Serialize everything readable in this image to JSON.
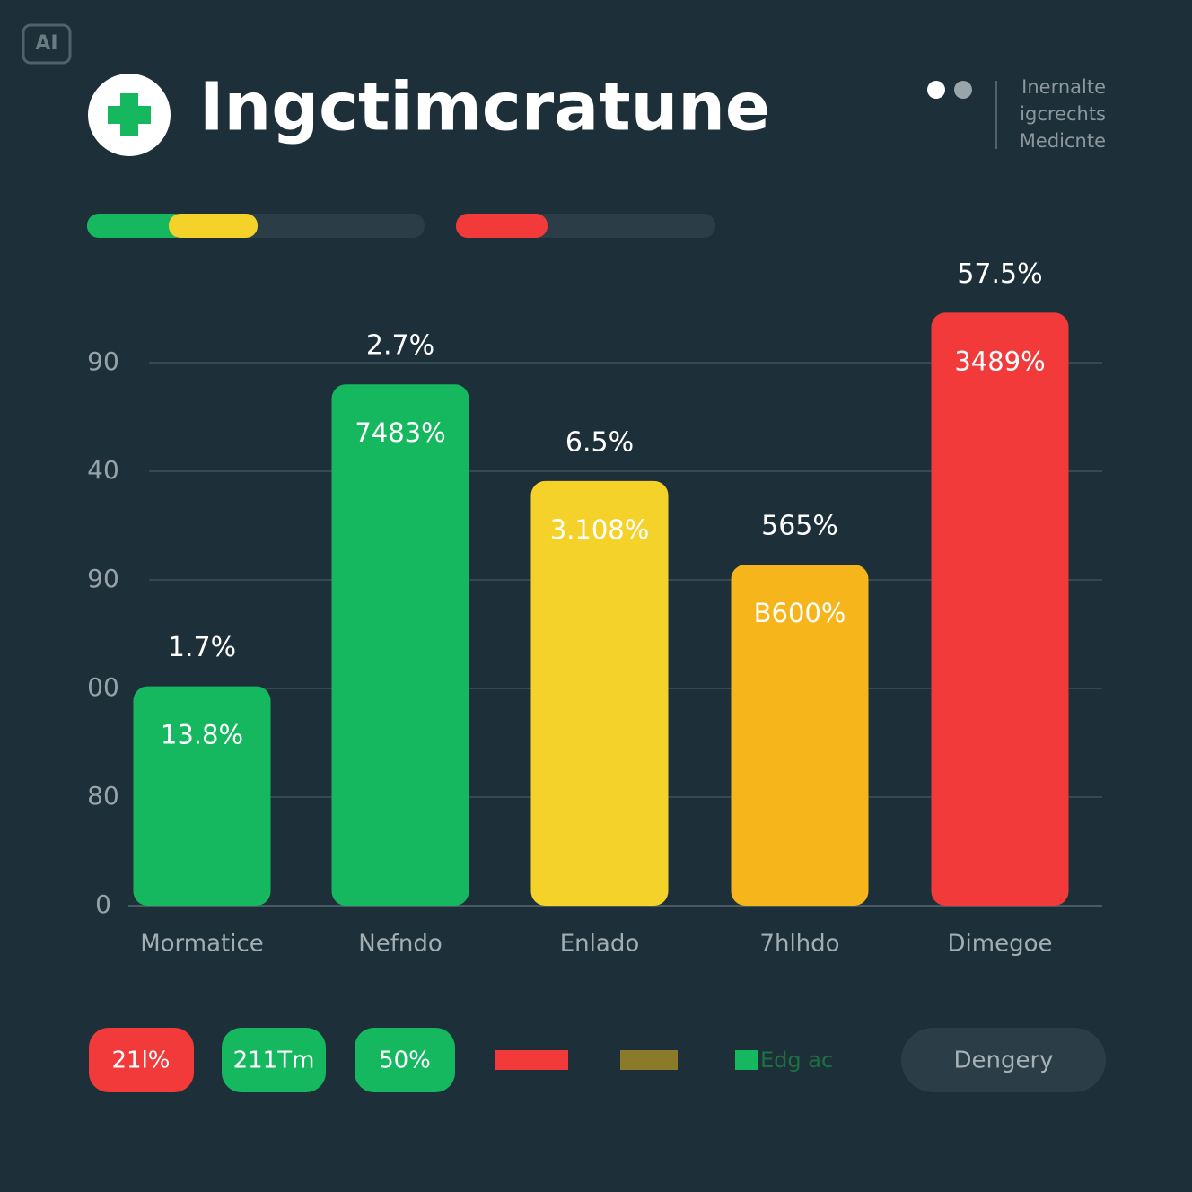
{
  "header": {
    "badge": "AI",
    "title": "Ingctimcratune",
    "side_text": [
      "Inernalte",
      "igcrechts",
      "Medicnte"
    ]
  },
  "chart_data": {
    "type": "bar",
    "categories": [
      "Mormatice",
      "Nefndo",
      "Enlado",
      "7hlhdo",
      "Dimegoe"
    ],
    "values": [
      2.02,
      4.8,
      3.91,
      3.14,
      5.46
    ],
    "top_labels": [
      "1.7%",
      "2.7%",
      "6.5%",
      "565%",
      "57.5%"
    ],
    "inner_labels": [
      "13.8%",
      "7483%",
      "3.108%",
      "B600%",
      "3489%"
    ],
    "colors": [
      "#16b85f",
      "#16b85f",
      "#f5d22a",
      "#f6b51a",
      "#f23a3b"
    ],
    "ylim": [
      0,
      6
    ],
    "yticks": [
      {
        "value": 0,
        "label": "0"
      },
      {
        "value": 1,
        "label": "80"
      },
      {
        "value": 2,
        "label": "00"
      },
      {
        "value": 3,
        "label": "90"
      },
      {
        "value": 4,
        "label": "40"
      },
      {
        "value": 5,
        "label": "90"
      }
    ],
    "grid": true
  },
  "footer": {
    "pills": [
      "21l%",
      "211Tm",
      "50%"
    ],
    "legend_text": "Edg ac",
    "button": "Dengery"
  }
}
